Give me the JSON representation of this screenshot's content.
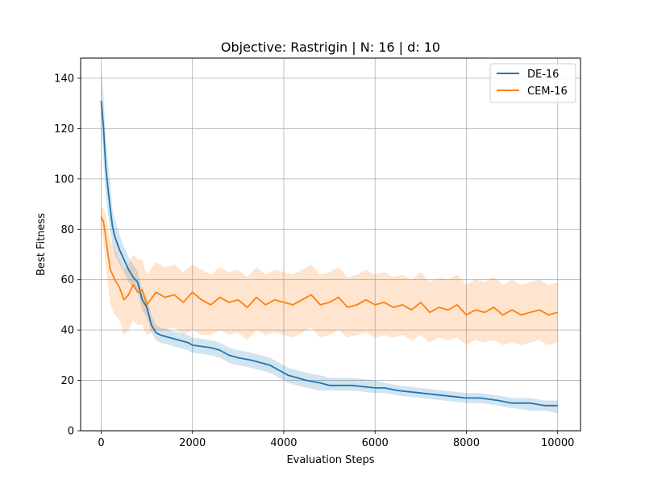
{
  "chart_data": {
    "type": "line",
    "title": "Objective: Rastrigin | N: 16 | d: 10",
    "xlabel": "Evaluation Steps",
    "ylabel": "Best Fitness",
    "xlim": [
      -450,
      10500
    ],
    "ylim": [
      0,
      148
    ],
    "xticks": [
      0,
      2000,
      4000,
      6000,
      8000,
      10000
    ],
    "yticks": [
      0,
      20,
      40,
      60,
      80,
      100,
      120,
      140
    ],
    "grid": true,
    "legend_position": "top-right",
    "series": [
      {
        "name": "DE-16",
        "color": "#1f77b4",
        "band_color": "#1f77b4",
        "x": [
          0,
          50,
          100,
          150,
          200,
          250,
          300,
          400,
          500,
          600,
          700,
          800,
          900,
          1000,
          1100,
          1200,
          1300,
          1500,
          1700,
          1900,
          2000,
          2400,
          2600,
          2800,
          3000,
          3300,
          3500,
          3700,
          3900,
          4100,
          4300,
          4500,
          4800,
          5000,
          5500,
          6000,
          6200,
          6500,
          7000,
          7500,
          8000,
          8300,
          8700,
          9000,
          9400,
          9700,
          10000
        ],
        "mean": [
          131,
          121,
          105,
          96,
          88,
          81,
          77,
          72,
          68,
          64,
          61,
          59,
          52,
          49,
          42,
          39,
          38,
          37,
          36,
          35,
          34,
          33,
          32,
          30,
          29,
          28,
          27,
          26,
          24,
          22,
          21,
          20,
          19,
          18,
          18,
          17,
          17,
          16,
          15,
          14,
          13,
          13,
          12,
          11,
          11,
          10,
          10
        ],
        "lower": [
          118,
          108,
          94,
          86,
          79,
          74,
          70,
          66,
          63,
          59,
          57,
          55,
          48,
          45,
          39,
          36,
          35,
          34,
          33,
          32,
          31,
          30,
          29,
          27,
          26,
          25,
          24,
          23,
          21,
          19,
          18,
          17,
          16,
          16,
          16,
          15,
          15,
          14,
          13,
          12,
          11,
          11,
          10,
          9,
          8,
          8,
          7
        ],
        "upper": [
          144,
          134,
          116,
          106,
          97,
          88,
          84,
          78,
          73,
          69,
          66,
          63,
          56,
          53,
          46,
          42,
          41,
          40,
          39,
          38,
          37,
          36,
          35,
          33,
          32,
          31,
          30,
          29,
          27,
          25,
          24,
          23,
          22,
          21,
          21,
          20,
          19,
          18,
          17,
          16,
          15,
          15,
          14,
          13,
          13,
          12,
          12
        ]
      },
      {
        "name": "CEM-16",
        "color": "#ff7f0e",
        "band_color": "#ff7f0e",
        "x": [
          0,
          50,
          100,
          150,
          200,
          300,
          400,
          500,
          600,
          700,
          800,
          900,
          1000,
          1200,
          1400,
          1600,
          1800,
          2000,
          2200,
          2400,
          2600,
          2800,
          3000,
          3200,
          3400,
          3600,
          3800,
          4000,
          4200,
          4400,
          4600,
          4800,
          5000,
          5200,
          5400,
          5600,
          5800,
          6000,
          6200,
          6400,
          6600,
          6800,
          7000,
          7200,
          7400,
          7600,
          7800,
          8000,
          8200,
          8400,
          8600,
          8800,
          9000,
          9200,
          9400,
          9600,
          9800,
          10000
        ],
        "mean": [
          85,
          83,
          77,
          70,
          64,
          60,
          57,
          52,
          54,
          58,
          55,
          56,
          50,
          55,
          53,
          54,
          51,
          55,
          52,
          50,
          53,
          51,
          52,
          49,
          53,
          50,
          52,
          51,
          50,
          52,
          54,
          50,
          51,
          53,
          49,
          50,
          52,
          50,
          51,
          49,
          50,
          48,
          51,
          47,
          49,
          48,
          50,
          46,
          48,
          47,
          49,
          46,
          48,
          46,
          47,
          48,
          46,
          47
        ],
        "lower": [
          80,
          76,
          66,
          58,
          50,
          46,
          44,
          38,
          40,
          44,
          42,
          42,
          38,
          40,
          40,
          41,
          38,
          40,
          38,
          38,
          40,
          38,
          39,
          36,
          40,
          38,
          39,
          38,
          37,
          39,
          41,
          37,
          38,
          40,
          37,
          38,
          39,
          37,
          38,
          37,
          38,
          36,
          38,
          35,
          37,
          36,
          37,
          34,
          36,
          35,
          36,
          34,
          35,
          34,
          35,
          36,
          34,
          35
        ],
        "upper": [
          89,
          88,
          86,
          80,
          76,
          72,
          68,
          64,
          66,
          70,
          68,
          68,
          62,
          67,
          65,
          66,
          63,
          66,
          64,
          62,
          65,
          63,
          64,
          61,
          65,
          62,
          64,
          63,
          62,
          64,
          66,
          62,
          63,
          65,
          61,
          62,
          64,
          62,
          63,
          61,
          62,
          60,
          63,
          59,
          61,
          60,
          62,
          58,
          60,
          59,
          61,
          58,
          60,
          58,
          59,
          60,
          58,
          59
        ]
      }
    ]
  }
}
